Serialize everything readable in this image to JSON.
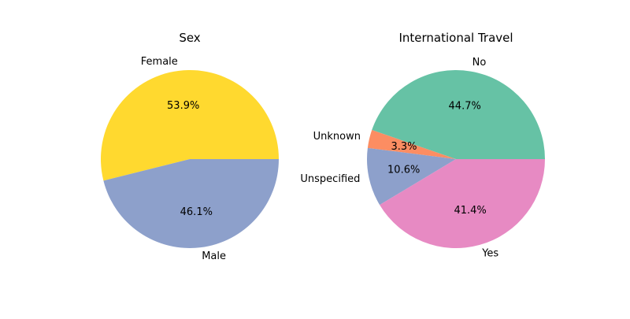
{
  "chart_data": [
    {
      "type": "pie",
      "title": "Sex",
      "slices": [
        {
          "label": "Female",
          "value": 53.9,
          "pct_label": "53.9%",
          "color": "#ffd92f"
        },
        {
          "label": "Male",
          "value": 46.1,
          "pct_label": "46.1%",
          "color": "#8da0cb"
        }
      ]
    },
    {
      "type": "pie",
      "title": "International Travel",
      "slices": [
        {
          "label": "No",
          "value": 44.7,
          "pct_label": "44.7%",
          "color": "#66c2a5"
        },
        {
          "label": "Unknown",
          "value": 3.3,
          "pct_label": "3.3%",
          "color": "#fc8d62"
        },
        {
          "label": "Unspecified",
          "value": 10.6,
          "pct_label": "10.6%",
          "color": "#8da0cb"
        },
        {
          "label": "Yes",
          "value": 41.4,
          "pct_label": "41.4%",
          "color": "#e78ac3"
        }
      ]
    }
  ]
}
